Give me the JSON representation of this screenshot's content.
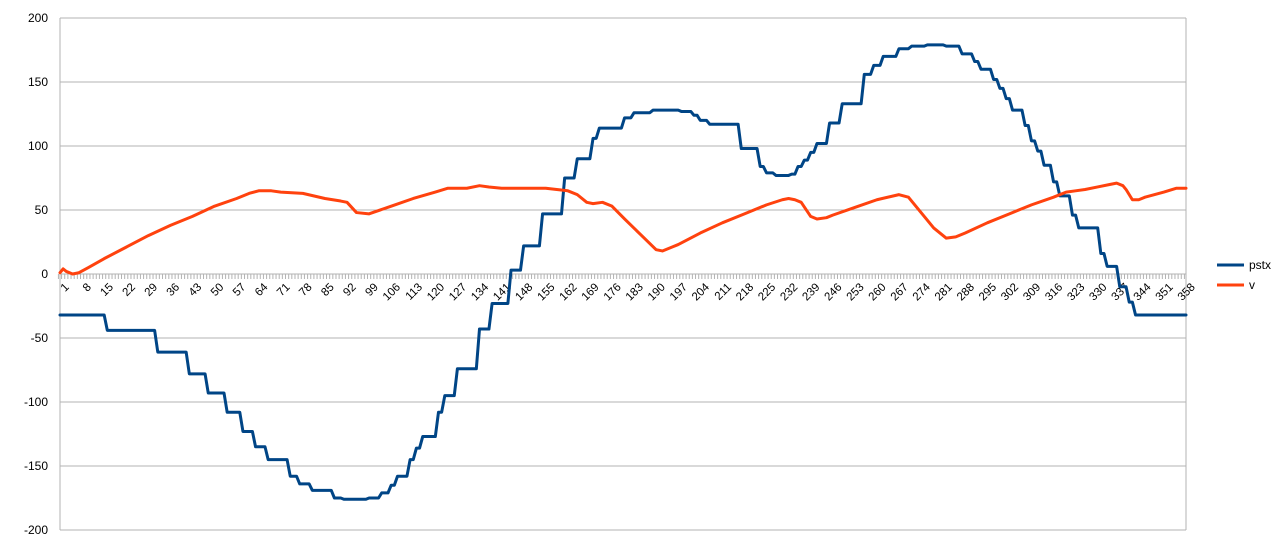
{
  "chart_data": {
    "type": "line",
    "title": "",
    "xlabel": "",
    "ylabel": "",
    "ylim": [
      -200,
      200
    ],
    "yticks": [
      -200,
      -150,
      -100,
      -50,
      0,
      50,
      100,
      150,
      200
    ],
    "grid": "horizontal",
    "legend": "right",
    "x_range": [
      1,
      358
    ],
    "xtick_labels": [
      1,
      8,
      15,
      22,
      29,
      36,
      43,
      50,
      57,
      64,
      71,
      78,
      85,
      92,
      99,
      106,
      113,
      120,
      127,
      134,
      141,
      148,
      155,
      162,
      169,
      176,
      183,
      190,
      197,
      204,
      211,
      218,
      225,
      232,
      239,
      246,
      253,
      260,
      267,
      274,
      281,
      288,
      295,
      302,
      309,
      316,
      323,
      330,
      337,
      344,
      351,
      358
    ],
    "series": [
      {
        "name": "pstx",
        "color": "#004586",
        "step": true,
        "points": [
          [
            1,
            -32
          ],
          [
            15,
            -32
          ],
          [
            16,
            -44
          ],
          [
            31,
            -44
          ],
          [
            32,
            -61
          ],
          [
            41,
            -61
          ],
          [
            42,
            -78
          ],
          [
            47,
            -78
          ],
          [
            48,
            -93
          ],
          [
            53,
            -93
          ],
          [
            54,
            -108
          ],
          [
            58,
            -108
          ],
          [
            59,
            -123
          ],
          [
            62,
            -123
          ],
          [
            63,
            -135
          ],
          [
            66,
            -135
          ],
          [
            67,
            -145
          ],
          [
            73,
            -145
          ],
          [
            74,
            -158
          ],
          [
            76,
            -158
          ],
          [
            77,
            -164
          ],
          [
            80,
            -164
          ],
          [
            81,
            -169
          ],
          [
            87,
            -169
          ],
          [
            88,
            -175
          ],
          [
            90,
            -175
          ],
          [
            91,
            -176
          ],
          [
            98,
            -176
          ],
          [
            99,
            -175
          ],
          [
            102,
            -175
          ],
          [
            103,
            -171
          ],
          [
            105,
            -171
          ],
          [
            106,
            -165
          ],
          [
            107,
            -165
          ],
          [
            108,
            -158
          ],
          [
            111,
            -158
          ],
          [
            112,
            -145
          ],
          [
            113,
            -145
          ],
          [
            114,
            -136
          ],
          [
            115,
            -136
          ],
          [
            116,
            -127
          ],
          [
            120,
            -127
          ],
          [
            121,
            -108
          ],
          [
            122,
            -108
          ],
          [
            123,
            -95
          ],
          [
            126,
            -95
          ],
          [
            127,
            -74
          ],
          [
            133,
            -74
          ],
          [
            134,
            -43
          ],
          [
            137,
            -43
          ],
          [
            138,
            -23
          ],
          [
            143,
            -23
          ],
          [
            144,
            3
          ],
          [
            147,
            3
          ],
          [
            148,
            22
          ],
          [
            153,
            22
          ],
          [
            154,
            47
          ],
          [
            160,
            47
          ],
          [
            161,
            75
          ],
          [
            164,
            75
          ],
          [
            165,
            90
          ],
          [
            169,
            90
          ],
          [
            170,
            106
          ],
          [
            171,
            106
          ],
          [
            172,
            114
          ],
          [
            179,
            114
          ],
          [
            180,
            122
          ],
          [
            182,
            122
          ],
          [
            183,
            126
          ],
          [
            188,
            126
          ],
          [
            189,
            128
          ],
          [
            197,
            128
          ],
          [
            198,
            127
          ],
          [
            201,
            127
          ],
          [
            202,
            124
          ],
          [
            203,
            124
          ],
          [
            204,
            120
          ],
          [
            206,
            120
          ],
          [
            207,
            117
          ],
          [
            216,
            117
          ],
          [
            217,
            98
          ],
          [
            222,
            98
          ],
          [
            223,
            84
          ],
          [
            224,
            84
          ],
          [
            225,
            79
          ],
          [
            227,
            79
          ],
          [
            228,
            77
          ],
          [
            232,
            77
          ],
          [
            233,
            78
          ],
          [
            234,
            78
          ],
          [
            235,
            84
          ],
          [
            236,
            84
          ],
          [
            237,
            89
          ],
          [
            238,
            89
          ],
          [
            239,
            95
          ],
          [
            240,
            95
          ],
          [
            241,
            102
          ],
          [
            244,
            102
          ],
          [
            245,
            118
          ],
          [
            248,
            118
          ],
          [
            249,
            133
          ],
          [
            255,
            133
          ],
          [
            256,
            156
          ],
          [
            258,
            156
          ],
          [
            259,
            163
          ],
          [
            261,
            163
          ],
          [
            262,
            170
          ],
          [
            266,
            170
          ],
          [
            267,
            176
          ],
          [
            270,
            176
          ],
          [
            271,
            178
          ],
          [
            275,
            178
          ],
          [
            276,
            179
          ],
          [
            281,
            179
          ],
          [
            282,
            178
          ],
          [
            286,
            178
          ],
          [
            287,
            172
          ],
          [
            290,
            172
          ],
          [
            291,
            166
          ],
          [
            292,
            166
          ],
          [
            293,
            160
          ],
          [
            296,
            160
          ],
          [
            297,
            152
          ],
          [
            298,
            152
          ],
          [
            299,
            145
          ],
          [
            300,
            145
          ],
          [
            301,
            137
          ],
          [
            302,
            137
          ],
          [
            303,
            128
          ],
          [
            306,
            128
          ],
          [
            307,
            116
          ],
          [
            308,
            116
          ],
          [
            309,
            104
          ],
          [
            310,
            104
          ],
          [
            311,
            96
          ],
          [
            312,
            96
          ],
          [
            313,
            85
          ],
          [
            315,
            85
          ],
          [
            316,
            72
          ],
          [
            317,
            72
          ],
          [
            318,
            61
          ],
          [
            321,
            61
          ],
          [
            322,
            46
          ],
          [
            323,
            46
          ],
          [
            324,
            36
          ],
          [
            330,
            36
          ],
          [
            331,
            16
          ],
          [
            332,
            16
          ],
          [
            333,
            6
          ],
          [
            336,
            6
          ],
          [
            337,
            -10
          ],
          [
            339,
            -10
          ],
          [
            340,
            -22
          ],
          [
            341,
            -22
          ],
          [
            342,
            -32
          ],
          [
            358,
            -32
          ]
        ]
      },
      {
        "name": "v",
        "color": "#ff420e",
        "step": false,
        "points": [
          [
            1,
            1
          ],
          [
            2,
            4
          ],
          [
            3,
            2
          ],
          [
            5,
            0
          ],
          [
            7,
            1
          ],
          [
            10,
            5
          ],
          [
            15,
            12
          ],
          [
            22,
            21
          ],
          [
            29,
            30
          ],
          [
            36,
            38
          ],
          [
            43,
            45
          ],
          [
            50,
            53
          ],
          [
            57,
            59
          ],
          [
            61,
            63
          ],
          [
            64,
            65
          ],
          [
            68,
            65
          ],
          [
            71,
            64
          ],
          [
            78,
            63
          ],
          [
            85,
            59
          ],
          [
            90,
            57
          ],
          [
            92,
            56
          ],
          [
            95,
            48
          ],
          [
            99,
            47
          ],
          [
            106,
            53
          ],
          [
            113,
            59
          ],
          [
            120,
            64
          ],
          [
            124,
            67
          ],
          [
            127,
            67
          ],
          [
            130,
            67
          ],
          [
            134,
            69
          ],
          [
            137,
            68
          ],
          [
            141,
            67
          ],
          [
            148,
            67
          ],
          [
            155,
            67
          ],
          [
            162,
            65
          ],
          [
            165,
            62
          ],
          [
            168,
            56
          ],
          [
            170,
            55
          ],
          [
            173,
            56
          ],
          [
            176,
            53
          ],
          [
            180,
            43
          ],
          [
            185,
            31
          ],
          [
            190,
            19
          ],
          [
            192,
            18
          ],
          [
            195,
            21
          ],
          [
            197,
            23
          ],
          [
            204,
            32
          ],
          [
            211,
            40
          ],
          [
            218,
            47
          ],
          [
            225,
            54
          ],
          [
            230,
            58
          ],
          [
            232,
            59
          ],
          [
            234,
            58
          ],
          [
            236,
            56
          ],
          [
            239,
            45
          ],
          [
            241,
            43
          ],
          [
            244,
            44
          ],
          [
            246,
            46
          ],
          [
            253,
            52
          ],
          [
            260,
            58
          ],
          [
            267,
            62
          ],
          [
            270,
            60
          ],
          [
            274,
            48
          ],
          [
            278,
            36
          ],
          [
            282,
            28
          ],
          [
            285,
            29
          ],
          [
            288,
            32
          ],
          [
            295,
            40
          ],
          [
            302,
            47
          ],
          [
            309,
            54
          ],
          [
            316,
            60
          ],
          [
            320,
            64
          ],
          [
            323,
            65
          ],
          [
            326,
            66
          ],
          [
            330,
            68
          ],
          [
            334,
            70
          ],
          [
            336,
            71
          ],
          [
            338,
            69
          ],
          [
            339,
            66
          ],
          [
            341,
            58
          ],
          [
            343,
            58
          ],
          [
            345,
            60
          ],
          [
            351,
            64
          ],
          [
            355,
            67
          ],
          [
            358,
            67
          ]
        ]
      }
    ]
  }
}
